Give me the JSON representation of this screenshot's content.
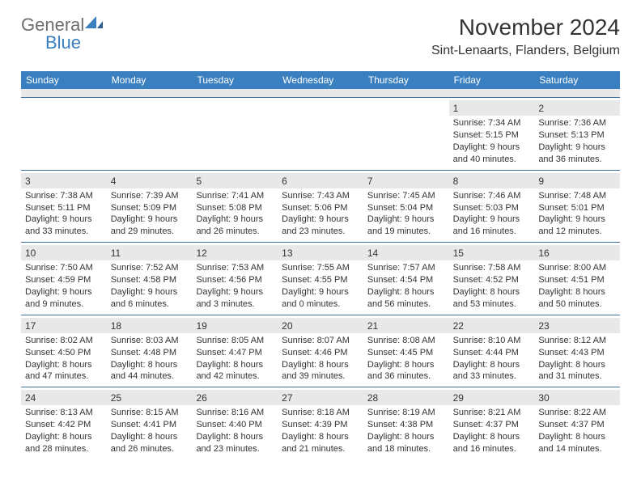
{
  "logo": {
    "text1": "General",
    "text2": "Blue"
  },
  "header": {
    "month_title": "November 2024",
    "location": "Sint-Lenaarts, Flanders, Belgium"
  },
  "colors": {
    "header_bar": "#3a7fc0",
    "band_gray": "#e8e8e8",
    "rule": "#3a6f9e",
    "text": "#333333",
    "logo_gray": "#6e6e6e",
    "logo_blue": "#3a7fc0"
  },
  "weekdays": [
    "Sunday",
    "Monday",
    "Tuesday",
    "Wednesday",
    "Thursday",
    "Friday",
    "Saturday"
  ],
  "weeks": [
    [
      null,
      null,
      null,
      null,
      null,
      {
        "n": "1",
        "sr": "Sunrise: 7:34 AM",
        "ss": "Sunset: 5:15 PM",
        "d1": "Daylight: 9 hours",
        "d2": "and 40 minutes."
      },
      {
        "n": "2",
        "sr": "Sunrise: 7:36 AM",
        "ss": "Sunset: 5:13 PM",
        "d1": "Daylight: 9 hours",
        "d2": "and 36 minutes."
      }
    ],
    [
      {
        "n": "3",
        "sr": "Sunrise: 7:38 AM",
        "ss": "Sunset: 5:11 PM",
        "d1": "Daylight: 9 hours",
        "d2": "and 33 minutes."
      },
      {
        "n": "4",
        "sr": "Sunrise: 7:39 AM",
        "ss": "Sunset: 5:09 PM",
        "d1": "Daylight: 9 hours",
        "d2": "and 29 minutes."
      },
      {
        "n": "5",
        "sr": "Sunrise: 7:41 AM",
        "ss": "Sunset: 5:08 PM",
        "d1": "Daylight: 9 hours",
        "d2": "and 26 minutes."
      },
      {
        "n": "6",
        "sr": "Sunrise: 7:43 AM",
        "ss": "Sunset: 5:06 PM",
        "d1": "Daylight: 9 hours",
        "d2": "and 23 minutes."
      },
      {
        "n": "7",
        "sr": "Sunrise: 7:45 AM",
        "ss": "Sunset: 5:04 PM",
        "d1": "Daylight: 9 hours",
        "d2": "and 19 minutes."
      },
      {
        "n": "8",
        "sr": "Sunrise: 7:46 AM",
        "ss": "Sunset: 5:03 PM",
        "d1": "Daylight: 9 hours",
        "d2": "and 16 minutes."
      },
      {
        "n": "9",
        "sr": "Sunrise: 7:48 AM",
        "ss": "Sunset: 5:01 PM",
        "d1": "Daylight: 9 hours",
        "d2": "and 12 minutes."
      }
    ],
    [
      {
        "n": "10",
        "sr": "Sunrise: 7:50 AM",
        "ss": "Sunset: 4:59 PM",
        "d1": "Daylight: 9 hours",
        "d2": "and 9 minutes."
      },
      {
        "n": "11",
        "sr": "Sunrise: 7:52 AM",
        "ss": "Sunset: 4:58 PM",
        "d1": "Daylight: 9 hours",
        "d2": "and 6 minutes."
      },
      {
        "n": "12",
        "sr": "Sunrise: 7:53 AM",
        "ss": "Sunset: 4:56 PM",
        "d1": "Daylight: 9 hours",
        "d2": "and 3 minutes."
      },
      {
        "n": "13",
        "sr": "Sunrise: 7:55 AM",
        "ss": "Sunset: 4:55 PM",
        "d1": "Daylight: 9 hours",
        "d2": "and 0 minutes."
      },
      {
        "n": "14",
        "sr": "Sunrise: 7:57 AM",
        "ss": "Sunset: 4:54 PM",
        "d1": "Daylight: 8 hours",
        "d2": "and 56 minutes."
      },
      {
        "n": "15",
        "sr": "Sunrise: 7:58 AM",
        "ss": "Sunset: 4:52 PM",
        "d1": "Daylight: 8 hours",
        "d2": "and 53 minutes."
      },
      {
        "n": "16",
        "sr": "Sunrise: 8:00 AM",
        "ss": "Sunset: 4:51 PM",
        "d1": "Daylight: 8 hours",
        "d2": "and 50 minutes."
      }
    ],
    [
      {
        "n": "17",
        "sr": "Sunrise: 8:02 AM",
        "ss": "Sunset: 4:50 PM",
        "d1": "Daylight: 8 hours",
        "d2": "and 47 minutes."
      },
      {
        "n": "18",
        "sr": "Sunrise: 8:03 AM",
        "ss": "Sunset: 4:48 PM",
        "d1": "Daylight: 8 hours",
        "d2": "and 44 minutes."
      },
      {
        "n": "19",
        "sr": "Sunrise: 8:05 AM",
        "ss": "Sunset: 4:47 PM",
        "d1": "Daylight: 8 hours",
        "d2": "and 42 minutes."
      },
      {
        "n": "20",
        "sr": "Sunrise: 8:07 AM",
        "ss": "Sunset: 4:46 PM",
        "d1": "Daylight: 8 hours",
        "d2": "and 39 minutes."
      },
      {
        "n": "21",
        "sr": "Sunrise: 8:08 AM",
        "ss": "Sunset: 4:45 PM",
        "d1": "Daylight: 8 hours",
        "d2": "and 36 minutes."
      },
      {
        "n": "22",
        "sr": "Sunrise: 8:10 AM",
        "ss": "Sunset: 4:44 PM",
        "d1": "Daylight: 8 hours",
        "d2": "and 33 minutes."
      },
      {
        "n": "23",
        "sr": "Sunrise: 8:12 AM",
        "ss": "Sunset: 4:43 PM",
        "d1": "Daylight: 8 hours",
        "d2": "and 31 minutes."
      }
    ],
    [
      {
        "n": "24",
        "sr": "Sunrise: 8:13 AM",
        "ss": "Sunset: 4:42 PM",
        "d1": "Daylight: 8 hours",
        "d2": "and 28 minutes."
      },
      {
        "n": "25",
        "sr": "Sunrise: 8:15 AM",
        "ss": "Sunset: 4:41 PM",
        "d1": "Daylight: 8 hours",
        "d2": "and 26 minutes."
      },
      {
        "n": "26",
        "sr": "Sunrise: 8:16 AM",
        "ss": "Sunset: 4:40 PM",
        "d1": "Daylight: 8 hours",
        "d2": "and 23 minutes."
      },
      {
        "n": "27",
        "sr": "Sunrise: 8:18 AM",
        "ss": "Sunset: 4:39 PM",
        "d1": "Daylight: 8 hours",
        "d2": "and 21 minutes."
      },
      {
        "n": "28",
        "sr": "Sunrise: 8:19 AM",
        "ss": "Sunset: 4:38 PM",
        "d1": "Daylight: 8 hours",
        "d2": "and 18 minutes."
      },
      {
        "n": "29",
        "sr": "Sunrise: 8:21 AM",
        "ss": "Sunset: 4:37 PM",
        "d1": "Daylight: 8 hours",
        "d2": "and 16 minutes."
      },
      {
        "n": "30",
        "sr": "Sunrise: 8:22 AM",
        "ss": "Sunset: 4:37 PM",
        "d1": "Daylight: 8 hours",
        "d2": "and 14 minutes."
      }
    ]
  ]
}
